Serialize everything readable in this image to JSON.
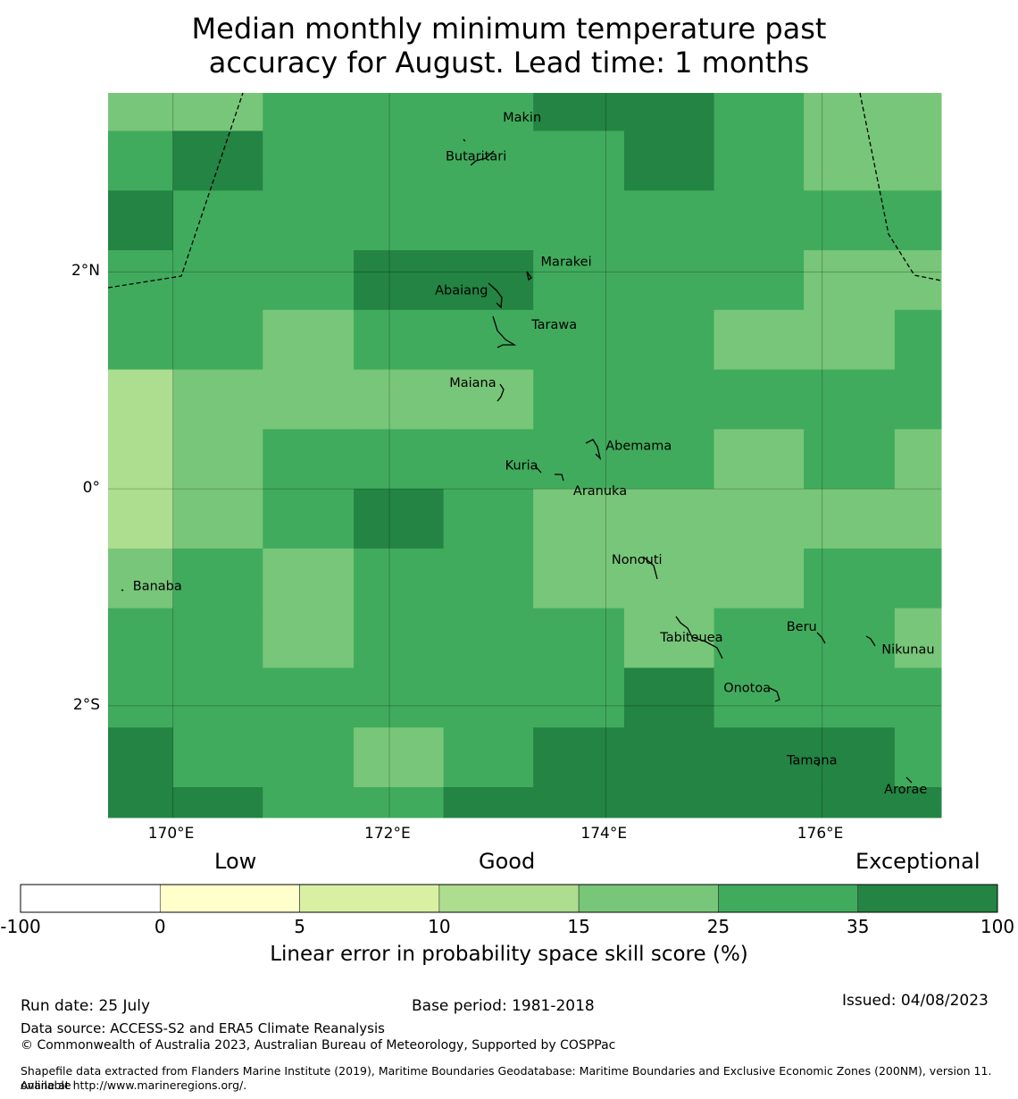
{
  "title_line1": "Median monthly minimum temperature past",
  "title_line2": "accuracy for August. Lead time: 1 months",
  "map": {
    "lon_range": [
      169.4,
      177.1
    ],
    "lat_range": [
      -3.03,
      3.65
    ],
    "x_ticks": [
      {
        "lon": 170,
        "label": "170°E"
      },
      {
        "lon": 172,
        "label": "172°E"
      },
      {
        "lon": 174,
        "label": "174°E"
      },
      {
        "lon": 176,
        "label": "176°E"
      }
    ],
    "y_ticks": [
      {
        "lat": 2,
        "label": "2°N"
      },
      {
        "lat": 0,
        "label": "0°"
      },
      {
        "lat": -2,
        "label": "2°S"
      }
    ],
    "colors": [
      "#ffffff",
      "#ffffcc",
      "#d9f0a3",
      "#addd8e",
      "#78c679",
      "#41ab5d",
      "#238443"
    ],
    "grid_lon_edges": [
      169.4,
      170.0,
      170.83,
      171.67,
      172.5,
      173.33,
      174.17,
      175.0,
      175.83,
      176.67,
      177.1
    ],
    "grid_lat_edges": [
      3.65,
      3.3,
      2.75,
      2.2,
      1.65,
      1.1,
      0.55,
      0.0,
      -0.55,
      -1.1,
      -1.65,
      -2.2,
      -2.75,
      -3.03
    ],
    "cells": [
      [
        4,
        4,
        5,
        5,
        5,
        6,
        6,
        5,
        4,
        4
      ],
      [
        5,
        6,
        5,
        5,
        5,
        5,
        6,
        5,
        4,
        4
      ],
      [
        6,
        5,
        5,
        5,
        5,
        5,
        5,
        5,
        5,
        5
      ],
      [
        5,
        5,
        5,
        6,
        6,
        5,
        5,
        5,
        4,
        4
      ],
      [
        5,
        5,
        4,
        5,
        5,
        5,
        5,
        4,
        4,
        5
      ],
      [
        3,
        4,
        4,
        4,
        4,
        5,
        5,
        5,
        5,
        5
      ],
      [
        3,
        4,
        5,
        5,
        5,
        5,
        5,
        4,
        5,
        4
      ],
      [
        3,
        4,
        5,
        6,
        5,
        4,
        4,
        4,
        4,
        4
      ],
      [
        4,
        5,
        4,
        5,
        5,
        4,
        4,
        4,
        5,
        5
      ],
      [
        5,
        5,
        4,
        5,
        5,
        5,
        4,
        5,
        5,
        4
      ],
      [
        5,
        5,
        5,
        5,
        5,
        5,
        6,
        5,
        5,
        5
      ],
      [
        6,
        5,
        5,
        4,
        5,
        6,
        6,
        6,
        6,
        5
      ],
      [
        6,
        6,
        5,
        5,
        6,
        6,
        6,
        6,
        6,
        6
      ]
    ],
    "islands": [
      {
        "name": "Makin",
        "lon": 172.95,
        "lat": 3.38,
        "label_dx": 12,
        "label_dy": -6
      },
      {
        "name": "Butaritari",
        "lon": 172.8,
        "lat": 3.15,
        "label_dx": -34,
        "label_dy": 10
      },
      {
        "name": "Marakei",
        "lon": 173.3,
        "lat": 2.0,
        "label_dx": 12,
        "label_dy": -12
      },
      {
        "name": "Abaiang",
        "lon": 172.95,
        "lat": 1.85,
        "label_dx": -64,
        "label_dy": 2
      },
      {
        "name": "Tarawa",
        "lon": 173.0,
        "lat": 1.45,
        "label_dx": 38,
        "label_dy": -8
      },
      {
        "name": "Maiana",
        "lon": 173.0,
        "lat": 0.9,
        "label_dx": -54,
        "label_dy": -10
      },
      {
        "name": "Abemama",
        "lon": 173.9,
        "lat": 0.4,
        "label_dx": 12,
        "label_dy": 0
      },
      {
        "name": "Kuria",
        "lon": 173.4,
        "lat": 0.22,
        "label_dx": -40,
        "label_dy": 0
      },
      {
        "name": "Aranuka",
        "lon": 173.6,
        "lat": 0.15,
        "label_dx": 12,
        "label_dy": 20
      },
      {
        "name": "Nonouti",
        "lon": 174.4,
        "lat": -0.65,
        "label_dx": -42,
        "label_dy": 0
      },
      {
        "name": "Banaba",
        "lon": 169.53,
        "lat": -0.86,
        "label_dx": 12,
        "label_dy": 4
      },
      {
        "name": "Tabiteuea",
        "lon": 174.8,
        "lat": -1.35,
        "label_dx": -36,
        "label_dy": 2
      },
      {
        "name": "Beru",
        "lon": 176.0,
        "lat": -1.35,
        "label_dx": -40,
        "label_dy": -10
      },
      {
        "name": "Nikunau",
        "lon": 176.45,
        "lat": -1.38,
        "label_dx": 12,
        "label_dy": 12
      },
      {
        "name": "Onotoa",
        "lon": 175.55,
        "lat": -1.8,
        "label_dx": -56,
        "label_dy": 4
      },
      {
        "name": "Tamana",
        "lon": 175.97,
        "lat": -2.5,
        "label_dx": -36,
        "label_dy": 0
      },
      {
        "name": "Arorae",
        "lon": 176.82,
        "lat": -2.65,
        "label_dx": -30,
        "label_dy": 14
      }
    ]
  },
  "colorbar": {
    "category_labels": [
      "Low",
      "Good",
      "Exceptional"
    ],
    "bounds": [
      "-100",
      "0",
      "5",
      "10",
      "15",
      "25",
      "35",
      "100"
    ],
    "colors": [
      "#ffffff",
      "#ffffcc",
      "#d9f0a3",
      "#addd8e",
      "#78c679",
      "#41ab5d",
      "#238443"
    ],
    "label": "Linear error in probability space skill score (%)"
  },
  "footer": {
    "run_date": "Run date: 25 July",
    "base_period": "Base period: 1981-2018",
    "issued": "Issued: 04/08/2023",
    "data_source": "Data source: ACCESS-S2 and ERA5 Climate Reanalysis",
    "copyright": "© Commonwealth of Australia 2023, Australian Bureau of Meteorology, Supported by COSPPac",
    "shapefile_line1": "Shapefile data extracted from Flanders Marine Institute (2019), Maritime Boundaries Geodatabase: Maritime Boundaries and Exclusive Economic Zones (200NM), version 11. Available",
    "shapefile_line2": "online at http://www.marineregions.org/."
  }
}
